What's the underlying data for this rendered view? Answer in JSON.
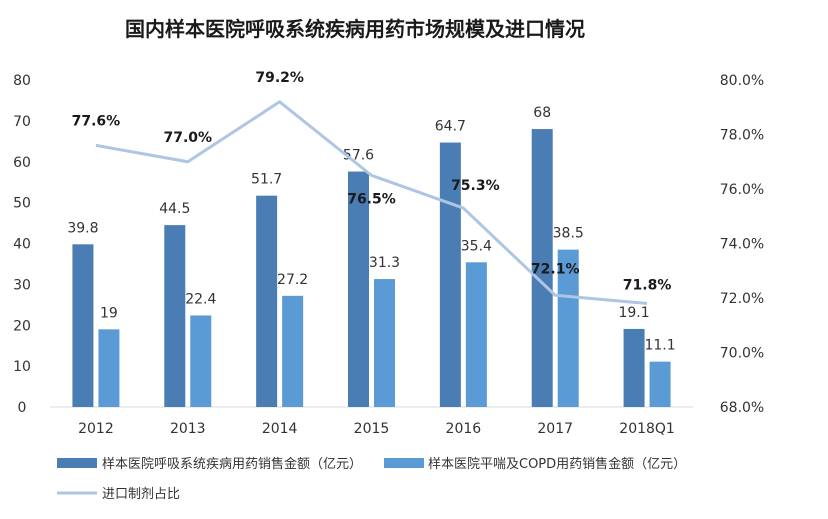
{
  "chart_data": {
    "type": "bar",
    "title": "国内样本医院呼吸系统疾病用药市场规模及进口情况",
    "categories": [
      "2012",
      "2013",
      "2014",
      "2015",
      "2016",
      "2017",
      "2018Q1"
    ],
    "series": [
      {
        "name": "样本医院呼吸系统疾病用药销售金额（亿元）",
        "type": "bar",
        "axis": "left",
        "color": "#4a7db3",
        "values": [
          39.8,
          44.5,
          51.7,
          57.6,
          64.7,
          68,
          19.1
        ],
        "labels": [
          "39.8",
          "44.5",
          "51.7",
          "57.6",
          "64.7",
          "68",
          "19.1"
        ]
      },
      {
        "name": "样本医院平喘及COPD用药销售金额（亿元）",
        "type": "bar",
        "axis": "left",
        "color": "#5b9bd5",
        "values": [
          19,
          22.4,
          27.2,
          31.3,
          35.4,
          38.5,
          11.1
        ],
        "labels": [
          "19",
          "22.4",
          "27.2",
          "31.3",
          "35.4",
          "38.5",
          "11.1"
        ]
      },
      {
        "name": "进口制剂占比",
        "type": "line",
        "axis": "right",
        "color": "#aec6e3",
        "values": [
          77.6,
          77.0,
          79.2,
          76.5,
          75.3,
          72.1,
          71.8
        ],
        "labels": [
          "77.6%",
          "77.0%",
          "79.2%",
          "76.5%",
          "75.3%",
          "72.1%",
          "71.8%"
        ]
      }
    ],
    "y_left": {
      "range": [
        0,
        80
      ],
      "ticks": [
        0,
        10,
        20,
        30,
        40,
        50,
        60,
        70,
        80
      ],
      "tick_labels": [
        "0",
        "10",
        "20",
        "30",
        "40",
        "50",
        "60",
        "70",
        "80"
      ]
    },
    "y_right": {
      "range": [
        68,
        80
      ],
      "ticks": [
        68,
        70,
        72,
        74,
        76,
        78,
        80
      ],
      "tick_labels": [
        "68.0%",
        "70.0%",
        "72.0%",
        "74.0%",
        "76.0%",
        "78.0%",
        "80.0%"
      ]
    },
    "grid": false,
    "legend_position": "bottom-left"
  }
}
